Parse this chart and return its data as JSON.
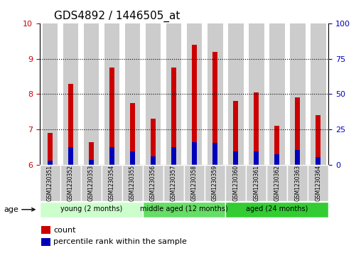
{
  "title": "GDS4892 / 1446505_at",
  "samples": [
    "GSM1230351",
    "GSM1230352",
    "GSM1230353",
    "GSM1230354",
    "GSM1230355",
    "GSM1230356",
    "GSM1230357",
    "GSM1230358",
    "GSM1230359",
    "GSM1230360",
    "GSM1230361",
    "GSM1230362",
    "GSM1230363",
    "GSM1230364"
  ],
  "count_values": [
    6.9,
    8.3,
    6.65,
    8.75,
    7.75,
    7.3,
    8.75,
    9.4,
    9.2,
    7.8,
    8.05,
    7.1,
    7.9,
    7.4
  ],
  "percentile_values": [
    6.12,
    6.5,
    6.15,
    6.5,
    6.38,
    6.25,
    6.5,
    6.65,
    6.63,
    6.38,
    6.38,
    6.3,
    6.43,
    6.22
  ],
  "ylim_left": [
    6,
    10
  ],
  "ylim_right": [
    0,
    100
  ],
  "yticks_left": [
    6,
    7,
    8,
    9,
    10
  ],
  "yticks_right": [
    0,
    25,
    50,
    75,
    100
  ],
  "groups": [
    {
      "label": "young (2 months)",
      "indices": [
        0,
        4
      ],
      "color": "#CCFFCC"
    },
    {
      "label": "middle aged (12 months)",
      "indices": [
        5,
        8
      ],
      "color": "#66DD66"
    },
    {
      "label": "aged (24 months)",
      "indices": [
        9,
        13
      ],
      "color": "#33CC33"
    }
  ],
  "bar_width": 0.25,
  "count_color": "#CC0000",
  "percentile_color": "#0000BB",
  "tick_label_color_left": "#CC0000",
  "tick_label_color_right": "#0000BB",
  "bar_bg_color": "#CCCCCC",
  "age_label": "age",
  "legend_count": "count",
  "legend_percentile": "percentile rank within the sample",
  "title_fontsize": 11,
  "axis_fontsize": 8,
  "tick_fontsize": 7
}
